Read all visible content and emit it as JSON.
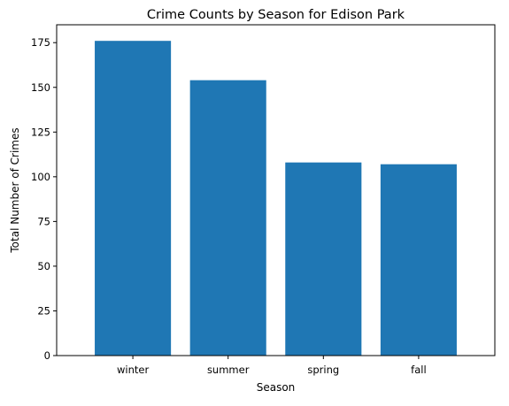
{
  "chart_data": {
    "type": "bar",
    "title": "Crime Counts by Season for Edison Park",
    "xlabel": "Season",
    "ylabel": "Total Number of Crimes",
    "categories": [
      "winter",
      "summer",
      "spring",
      "fall"
    ],
    "values": [
      176,
      154,
      108,
      107
    ],
    "ylim": [
      0,
      185
    ],
    "yticks": [
      0,
      25,
      50,
      75,
      100,
      125,
      150,
      175
    ],
    "grid": false,
    "legend": "none",
    "bar_color": "#1f77b4"
  }
}
